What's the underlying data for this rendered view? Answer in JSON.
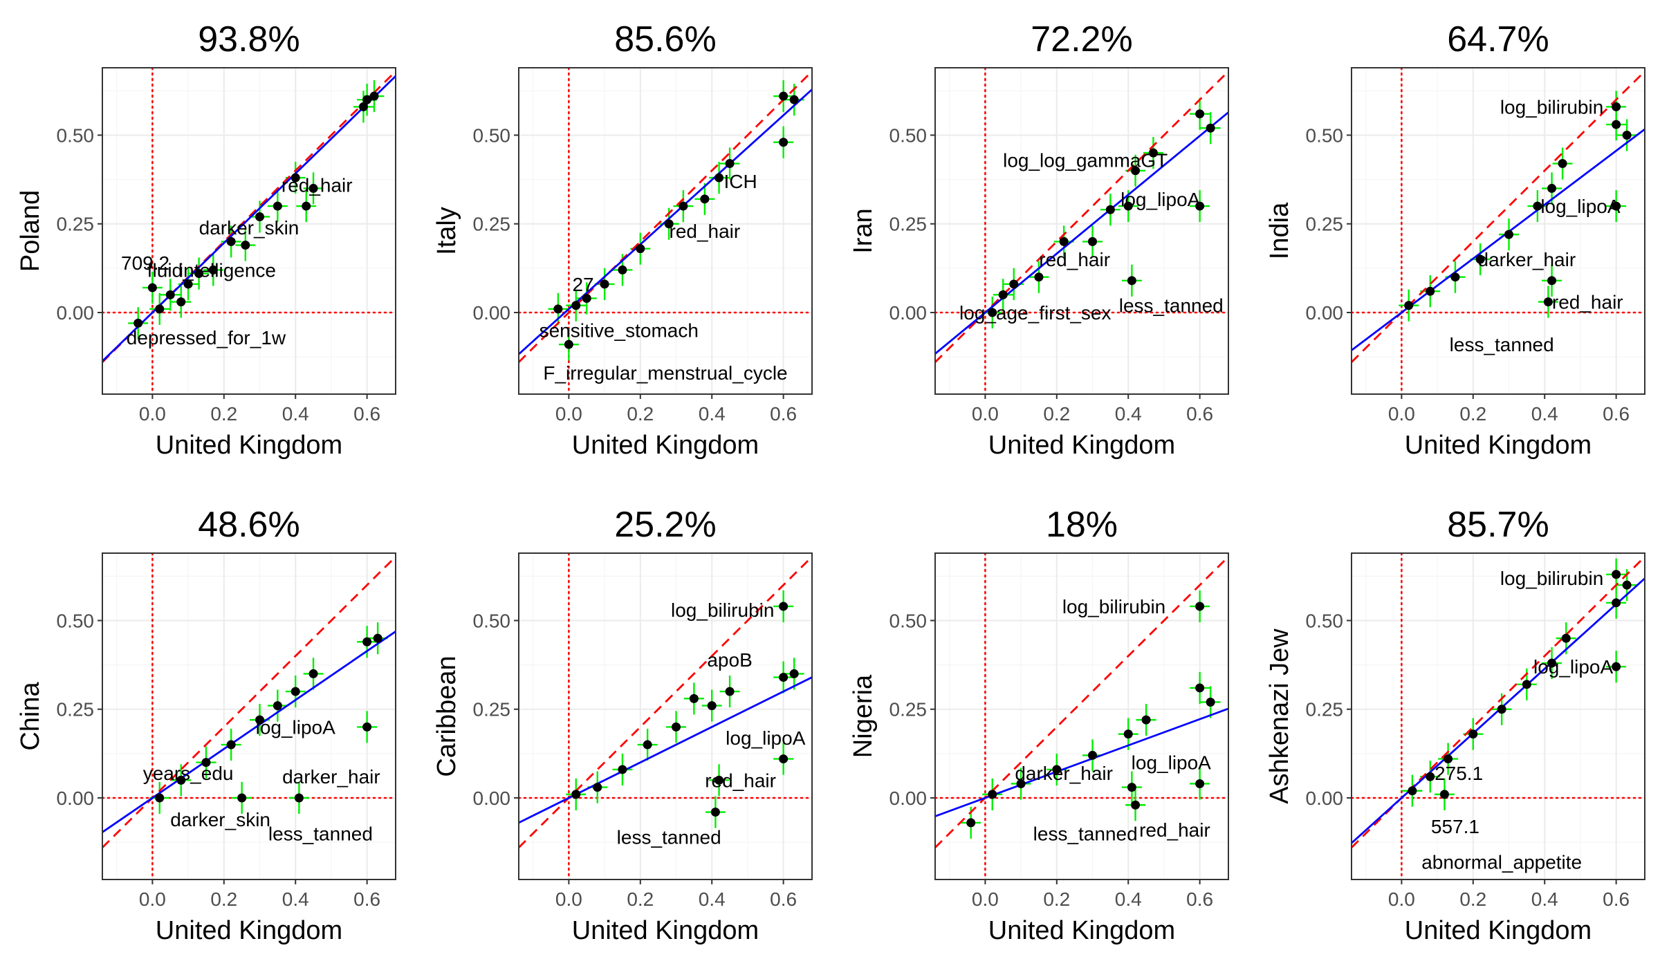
{
  "colors": {
    "background": "#ffffff",
    "panel_background": "#ffffff",
    "grid_major": "#ebebeb",
    "grid_minor": "#f5f5f5",
    "panel_border": "#333333",
    "error_bar": "#00ee00",
    "point": "#000000",
    "fit_line": "#0000ff",
    "identity_line": "#ff0000",
    "zero_line": "#ff0000"
  },
  "chart_data": [
    {
      "type": "scatter",
      "title": "93.8%",
      "xlabel": "United Kingdom",
      "ylabel": "Poland",
      "xlim": [
        -0.14,
        0.68
      ],
      "ylim": [
        -0.23,
        0.69
      ],
      "x_ticks": [
        "0.0",
        "0.2",
        "0.4",
        "0.6"
      ],
      "y_ticks": [
        "0.00",
        "0.25",
        "0.50"
      ],
      "grid": true,
      "identity_line": true,
      "fit_line": {
        "slope": 0.98,
        "intercept": -0.0
      },
      "points": [
        {
          "x": 0.6,
          "y": 0.6
        },
        {
          "x": 0.62,
          "y": 0.61
        },
        {
          "x": 0.59,
          "y": 0.58
        },
        {
          "x": 0.43,
          "y": 0.3
        },
        {
          "x": 0.45,
          "y": 0.35
        },
        {
          "x": 0.4,
          "y": 0.38
        },
        {
          "x": 0.35,
          "y": 0.3
        },
        {
          "x": 0.3,
          "y": 0.27
        },
        {
          "x": 0.26,
          "y": 0.19
        },
        {
          "x": 0.22,
          "y": 0.2
        },
        {
          "x": 0.17,
          "y": 0.12
        },
        {
          "x": 0.13,
          "y": 0.11
        },
        {
          "x": 0.1,
          "y": 0.08
        },
        {
          "x": 0.05,
          "y": 0.05
        },
        {
          "x": 0.02,
          "y": 0.01
        },
        {
          "x": -0.04,
          "y": -0.03
        },
        {
          "x": 0.0,
          "y": 0.07
        },
        {
          "x": 0.08,
          "y": 0.03
        }
      ],
      "annotations": [
        {
          "text": "red_hair",
          "x": 0.46,
          "y": 0.36
        },
        {
          "text": "darker_skin",
          "x": 0.27,
          "y": 0.24
        },
        {
          "text": "intelligence",
          "x": 0.21,
          "y": 0.12
        },
        {
          "text": "fluid_",
          "x": 0.05,
          "y": 0.12
        },
        {
          "text": "709.2",
          "x": -0.02,
          "y": 0.14
        },
        {
          "text": "depressed_for_1w",
          "x": 0.15,
          "y": -0.07
        }
      ]
    },
    {
      "type": "scatter",
      "title": "85.6%",
      "xlabel": "United Kingdom",
      "ylabel": "Italy",
      "xlim": [
        -0.14,
        0.68
      ],
      "ylim": [
        -0.23,
        0.69
      ],
      "x_ticks": [
        "0.0",
        "0.2",
        "0.4",
        "0.6"
      ],
      "y_ticks": [
        "0.00",
        "0.25",
        "0.50"
      ],
      "grid": true,
      "identity_line": true,
      "fit_line": {
        "slope": 0.91,
        "intercept": 0.01
      },
      "points": [
        {
          "x": 0.6,
          "y": 0.61
        },
        {
          "x": 0.63,
          "y": 0.6
        },
        {
          "x": 0.6,
          "y": 0.48
        },
        {
          "x": 0.45,
          "y": 0.42
        },
        {
          "x": 0.42,
          "y": 0.38
        },
        {
          "x": 0.38,
          "y": 0.32
        },
        {
          "x": 0.32,
          "y": 0.3
        },
        {
          "x": 0.28,
          "y": 0.25
        },
        {
          "x": 0.2,
          "y": 0.18
        },
        {
          "x": 0.15,
          "y": 0.12
        },
        {
          "x": 0.1,
          "y": 0.08
        },
        {
          "x": 0.05,
          "y": 0.04
        },
        {
          "x": 0.0,
          "y": -0.09
        },
        {
          "x": -0.03,
          "y": 0.01
        },
        {
          "x": 0.02,
          "y": 0.02
        }
      ],
      "annotations": [
        {
          "text": "ICH",
          "x": 0.48,
          "y": 0.37
        },
        {
          "text": "red_hair",
          "x": 0.38,
          "y": 0.23
        },
        {
          "text": "27",
          "x": 0.04,
          "y": 0.08
        },
        {
          "text": "sensitive_stomach",
          "x": 0.14,
          "y": -0.05
        },
        {
          "text": "F_irregular_menstrual_cycle",
          "x": 0.27,
          "y": -0.17
        }
      ]
    },
    {
      "type": "scatter",
      "title": "72.2%",
      "xlabel": "United Kingdom",
      "ylabel": "Iran",
      "xlim": [
        -0.14,
        0.68
      ],
      "ylim": [
        -0.23,
        0.69
      ],
      "x_ticks": [
        "0.0",
        "0.2",
        "0.4",
        "0.6"
      ],
      "y_ticks": [
        "0.00",
        "0.25",
        "0.50"
      ],
      "grid": true,
      "identity_line": true,
      "fit_line": {
        "slope": 0.83,
        "intercept": 0.0
      },
      "points": [
        {
          "x": 0.6,
          "y": 0.56
        },
        {
          "x": 0.63,
          "y": 0.52
        },
        {
          "x": 0.6,
          "y": 0.3
        },
        {
          "x": 0.47,
          "y": 0.45
        },
        {
          "x": 0.42,
          "y": 0.4
        },
        {
          "x": 0.4,
          "y": 0.3
        },
        {
          "x": 0.35,
          "y": 0.29
        },
        {
          "x": 0.3,
          "y": 0.2
        },
        {
          "x": 0.22,
          "y": 0.2
        },
        {
          "x": 0.15,
          "y": 0.1
        },
        {
          "x": 0.08,
          "y": 0.08
        },
        {
          "x": 0.05,
          "y": 0.05
        },
        {
          "x": 0.02,
          "y": 0.0
        },
        {
          "x": 0.41,
          "y": 0.09
        }
      ],
      "annotations": [
        {
          "text": "log_log_gammaGT",
          "x": 0.28,
          "y": 0.43
        },
        {
          "text": "log_lipoA",
          "x": 0.49,
          "y": 0.32
        },
        {
          "text": "red_hair",
          "x": 0.25,
          "y": 0.15
        },
        {
          "text": "log_age_first_sex",
          "x": 0.14,
          "y": 0.0
        },
        {
          "text": "less_tanned",
          "x": 0.52,
          "y": 0.02
        }
      ]
    },
    {
      "type": "scatter",
      "title": "64.7%",
      "xlabel": "United Kingdom",
      "ylabel": "India",
      "xlim": [
        -0.14,
        0.68
      ],
      "ylim": [
        -0.23,
        0.69
      ],
      "x_ticks": [
        "0.0",
        "0.2",
        "0.4",
        "0.6"
      ],
      "y_ticks": [
        "0.00",
        "0.25",
        "0.50"
      ],
      "grid": true,
      "identity_line": true,
      "fit_line": {
        "slope": 0.76,
        "intercept": 0.0
      },
      "points": [
        {
          "x": 0.6,
          "y": 0.58
        },
        {
          "x": 0.6,
          "y": 0.53
        },
        {
          "x": 0.63,
          "y": 0.5
        },
        {
          "x": 0.6,
          "y": 0.3
        },
        {
          "x": 0.45,
          "y": 0.42
        },
        {
          "x": 0.42,
          "y": 0.35
        },
        {
          "x": 0.38,
          "y": 0.3
        },
        {
          "x": 0.3,
          "y": 0.22
        },
        {
          "x": 0.22,
          "y": 0.15
        },
        {
          "x": 0.15,
          "y": 0.1
        },
        {
          "x": 0.08,
          "y": 0.06
        },
        {
          "x": 0.02,
          "y": 0.02
        },
        {
          "x": 0.42,
          "y": 0.09
        },
        {
          "x": 0.41,
          "y": 0.03
        }
      ],
      "annotations": [
        {
          "text": "log_bilirubin",
          "x": 0.42,
          "y": 0.58
        },
        {
          "text": "log_lipoA",
          "x": 0.5,
          "y": 0.3
        },
        {
          "text": "darker_hair",
          "x": 0.35,
          "y": 0.15
        },
        {
          "text": "red_hair",
          "x": 0.52,
          "y": 0.03
        },
        {
          "text": "less_tanned",
          "x": 0.28,
          "y": -0.09
        }
      ]
    },
    {
      "type": "scatter",
      "title": "48.6%",
      "xlabel": "United Kingdom",
      "ylabel": "China",
      "xlim": [
        -0.14,
        0.68
      ],
      "ylim": [
        -0.23,
        0.69
      ],
      "x_ticks": [
        "0.0",
        "0.2",
        "0.4",
        "0.6"
      ],
      "y_ticks": [
        "0.00",
        "0.25",
        "0.50"
      ],
      "grid": true,
      "identity_line": true,
      "fit_line": {
        "slope": 0.69,
        "intercept": 0.0
      },
      "points": [
        {
          "x": 0.6,
          "y": 0.44
        },
        {
          "x": 0.63,
          "y": 0.45
        },
        {
          "x": 0.6,
          "y": 0.2
        },
        {
          "x": 0.45,
          "y": 0.35
        },
        {
          "x": 0.4,
          "y": 0.3
        },
        {
          "x": 0.35,
          "y": 0.26
        },
        {
          "x": 0.3,
          "y": 0.22
        },
        {
          "x": 0.22,
          "y": 0.15
        },
        {
          "x": 0.15,
          "y": 0.1
        },
        {
          "x": 0.08,
          "y": 0.05
        },
        {
          "x": 0.02,
          "y": 0.0
        },
        {
          "x": 0.25,
          "y": 0.0
        },
        {
          "x": 0.41,
          "y": 0.0
        }
      ],
      "annotations": [
        {
          "text": "log_lipoA",
          "x": 0.4,
          "y": 0.2
        },
        {
          "text": "years_edu",
          "x": 0.1,
          "y": 0.07
        },
        {
          "text": "darker_hair",
          "x": 0.5,
          "y": 0.06
        },
        {
          "text": "darker_skin",
          "x": 0.19,
          "y": -0.06
        },
        {
          "text": "less_tanned",
          "x": 0.47,
          "y": -0.1
        }
      ]
    },
    {
      "type": "scatter",
      "title": "25.2%",
      "xlabel": "United Kingdom",
      "ylabel": "Caribbean",
      "xlim": [
        -0.14,
        0.68
      ],
      "ylim": [
        -0.23,
        0.69
      ],
      "x_ticks": [
        "0.0",
        "0.2",
        "0.4",
        "0.6"
      ],
      "y_ticks": [
        "0.00",
        "0.25",
        "0.50"
      ],
      "grid": true,
      "identity_line": true,
      "fit_line": {
        "slope": 0.5,
        "intercept": 0.0
      },
      "points": [
        {
          "x": 0.6,
          "y": 0.54
        },
        {
          "x": 0.6,
          "y": 0.34
        },
        {
          "x": 0.63,
          "y": 0.35
        },
        {
          "x": 0.6,
          "y": 0.11
        },
        {
          "x": 0.4,
          "y": 0.26
        },
        {
          "x": 0.45,
          "y": 0.3
        },
        {
          "x": 0.35,
          "y": 0.28
        },
        {
          "x": 0.3,
          "y": 0.2
        },
        {
          "x": 0.22,
          "y": 0.15
        },
        {
          "x": 0.15,
          "y": 0.08
        },
        {
          "x": 0.08,
          "y": 0.03
        },
        {
          "x": 0.02,
          "y": 0.01
        },
        {
          "x": 0.42,
          "y": 0.05
        },
        {
          "x": 0.41,
          "y": -0.04
        }
      ],
      "annotations": [
        {
          "text": "log_bilirubin",
          "x": 0.43,
          "y": 0.53
        },
        {
          "text": "apoB",
          "x": 0.45,
          "y": 0.39
        },
        {
          "text": "log_lipoA",
          "x": 0.55,
          "y": 0.17
        },
        {
          "text": "red_hair",
          "x": 0.48,
          "y": 0.05
        },
        {
          "text": "less_tanned",
          "x": 0.28,
          "y": -0.11
        }
      ]
    },
    {
      "type": "scatter",
      "title": "18%",
      "xlabel": "United Kingdom",
      "ylabel": "Nigeria",
      "xlim": [
        -0.14,
        0.68
      ],
      "ylim": [
        -0.23,
        0.69
      ],
      "x_ticks": [
        "0.0",
        "0.2",
        "0.4",
        "0.6"
      ],
      "y_ticks": [
        "0.00",
        "0.25",
        "0.50"
      ],
      "grid": true,
      "identity_line": true,
      "fit_line": {
        "slope": 0.37,
        "intercept": 0.0
      },
      "points": [
        {
          "x": 0.6,
          "y": 0.54
        },
        {
          "x": 0.6,
          "y": 0.31
        },
        {
          "x": 0.63,
          "y": 0.27
        },
        {
          "x": 0.6,
          "y": 0.04
        },
        {
          "x": 0.45,
          "y": 0.22
        },
        {
          "x": 0.4,
          "y": 0.18
        },
        {
          "x": 0.3,
          "y": 0.12
        },
        {
          "x": 0.2,
          "y": 0.08
        },
        {
          "x": 0.1,
          "y": 0.04
        },
        {
          "x": 0.02,
          "y": 0.01
        },
        {
          "x": -0.04,
          "y": -0.07
        },
        {
          "x": 0.41,
          "y": 0.03
        },
        {
          "x": 0.42,
          "y": -0.02
        }
      ],
      "annotations": [
        {
          "text": "log_bilirubin",
          "x": 0.36,
          "y": 0.54
        },
        {
          "text": "log_lipoA",
          "x": 0.52,
          "y": 0.1
        },
        {
          "text": "darker_hair",
          "x": 0.22,
          "y": 0.07
        },
        {
          "text": "less_tanned",
          "x": 0.28,
          "y": -0.1
        },
        {
          "text": "red_hair",
          "x": 0.53,
          "y": -0.09
        }
      ]
    },
    {
      "type": "scatter",
      "title": "85.7%",
      "xlabel": "United Kingdom",
      "ylabel": "Ashkenazi Jew",
      "xlim": [
        -0.14,
        0.68
      ],
      "ylim": [
        -0.23,
        0.69
      ],
      "x_ticks": [
        "0.0",
        "0.2",
        "0.4",
        "0.6"
      ],
      "y_ticks": [
        "0.00",
        "0.25",
        "0.50"
      ],
      "grid": true,
      "identity_line": true,
      "fit_line": {
        "slope": 0.91,
        "intercept": 0.0
      },
      "points": [
        {
          "x": 0.6,
          "y": 0.63
        },
        {
          "x": 0.63,
          "y": 0.6
        },
        {
          "x": 0.6,
          "y": 0.55
        },
        {
          "x": 0.6,
          "y": 0.37
        },
        {
          "x": 0.46,
          "y": 0.45
        },
        {
          "x": 0.42,
          "y": 0.38
        },
        {
          "x": 0.35,
          "y": 0.32
        },
        {
          "x": 0.28,
          "y": 0.25
        },
        {
          "x": 0.2,
          "y": 0.18
        },
        {
          "x": 0.13,
          "y": 0.11
        },
        {
          "x": 0.08,
          "y": 0.06
        },
        {
          "x": 0.03,
          "y": 0.02
        },
        {
          "x": 0.12,
          "y": 0.01
        }
      ],
      "annotations": [
        {
          "text": "log_bilirubin",
          "x": 0.42,
          "y": 0.62
        },
        {
          "text": "log_lipoA",
          "x": 0.48,
          "y": 0.37
        },
        {
          "text": "275.1",
          "x": 0.16,
          "y": 0.07
        },
        {
          "text": "557.1",
          "x": 0.15,
          "y": -0.08
        },
        {
          "text": "abnormal_appetite",
          "x": 0.28,
          "y": -0.18
        }
      ]
    }
  ]
}
